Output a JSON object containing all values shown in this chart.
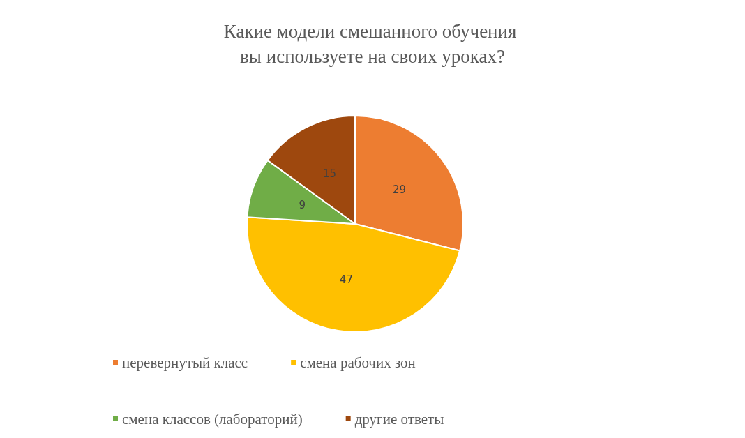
{
  "chart_data": {
    "type": "pie",
    "title": "Какие модели смешанного обучения вы используете на своих уроках?",
    "categories": [
      "перевернутый класс",
      "смена рабочих зон",
      "смена классов (лабораторий)",
      "другие ответы"
    ],
    "values": [
      29,
      47,
      9,
      15
    ],
    "colors": [
      "#ed7d31",
      "#ffc000",
      "#70ad47",
      "#9e480e"
    ],
    "data_labels": true,
    "legend": "bottom"
  }
}
